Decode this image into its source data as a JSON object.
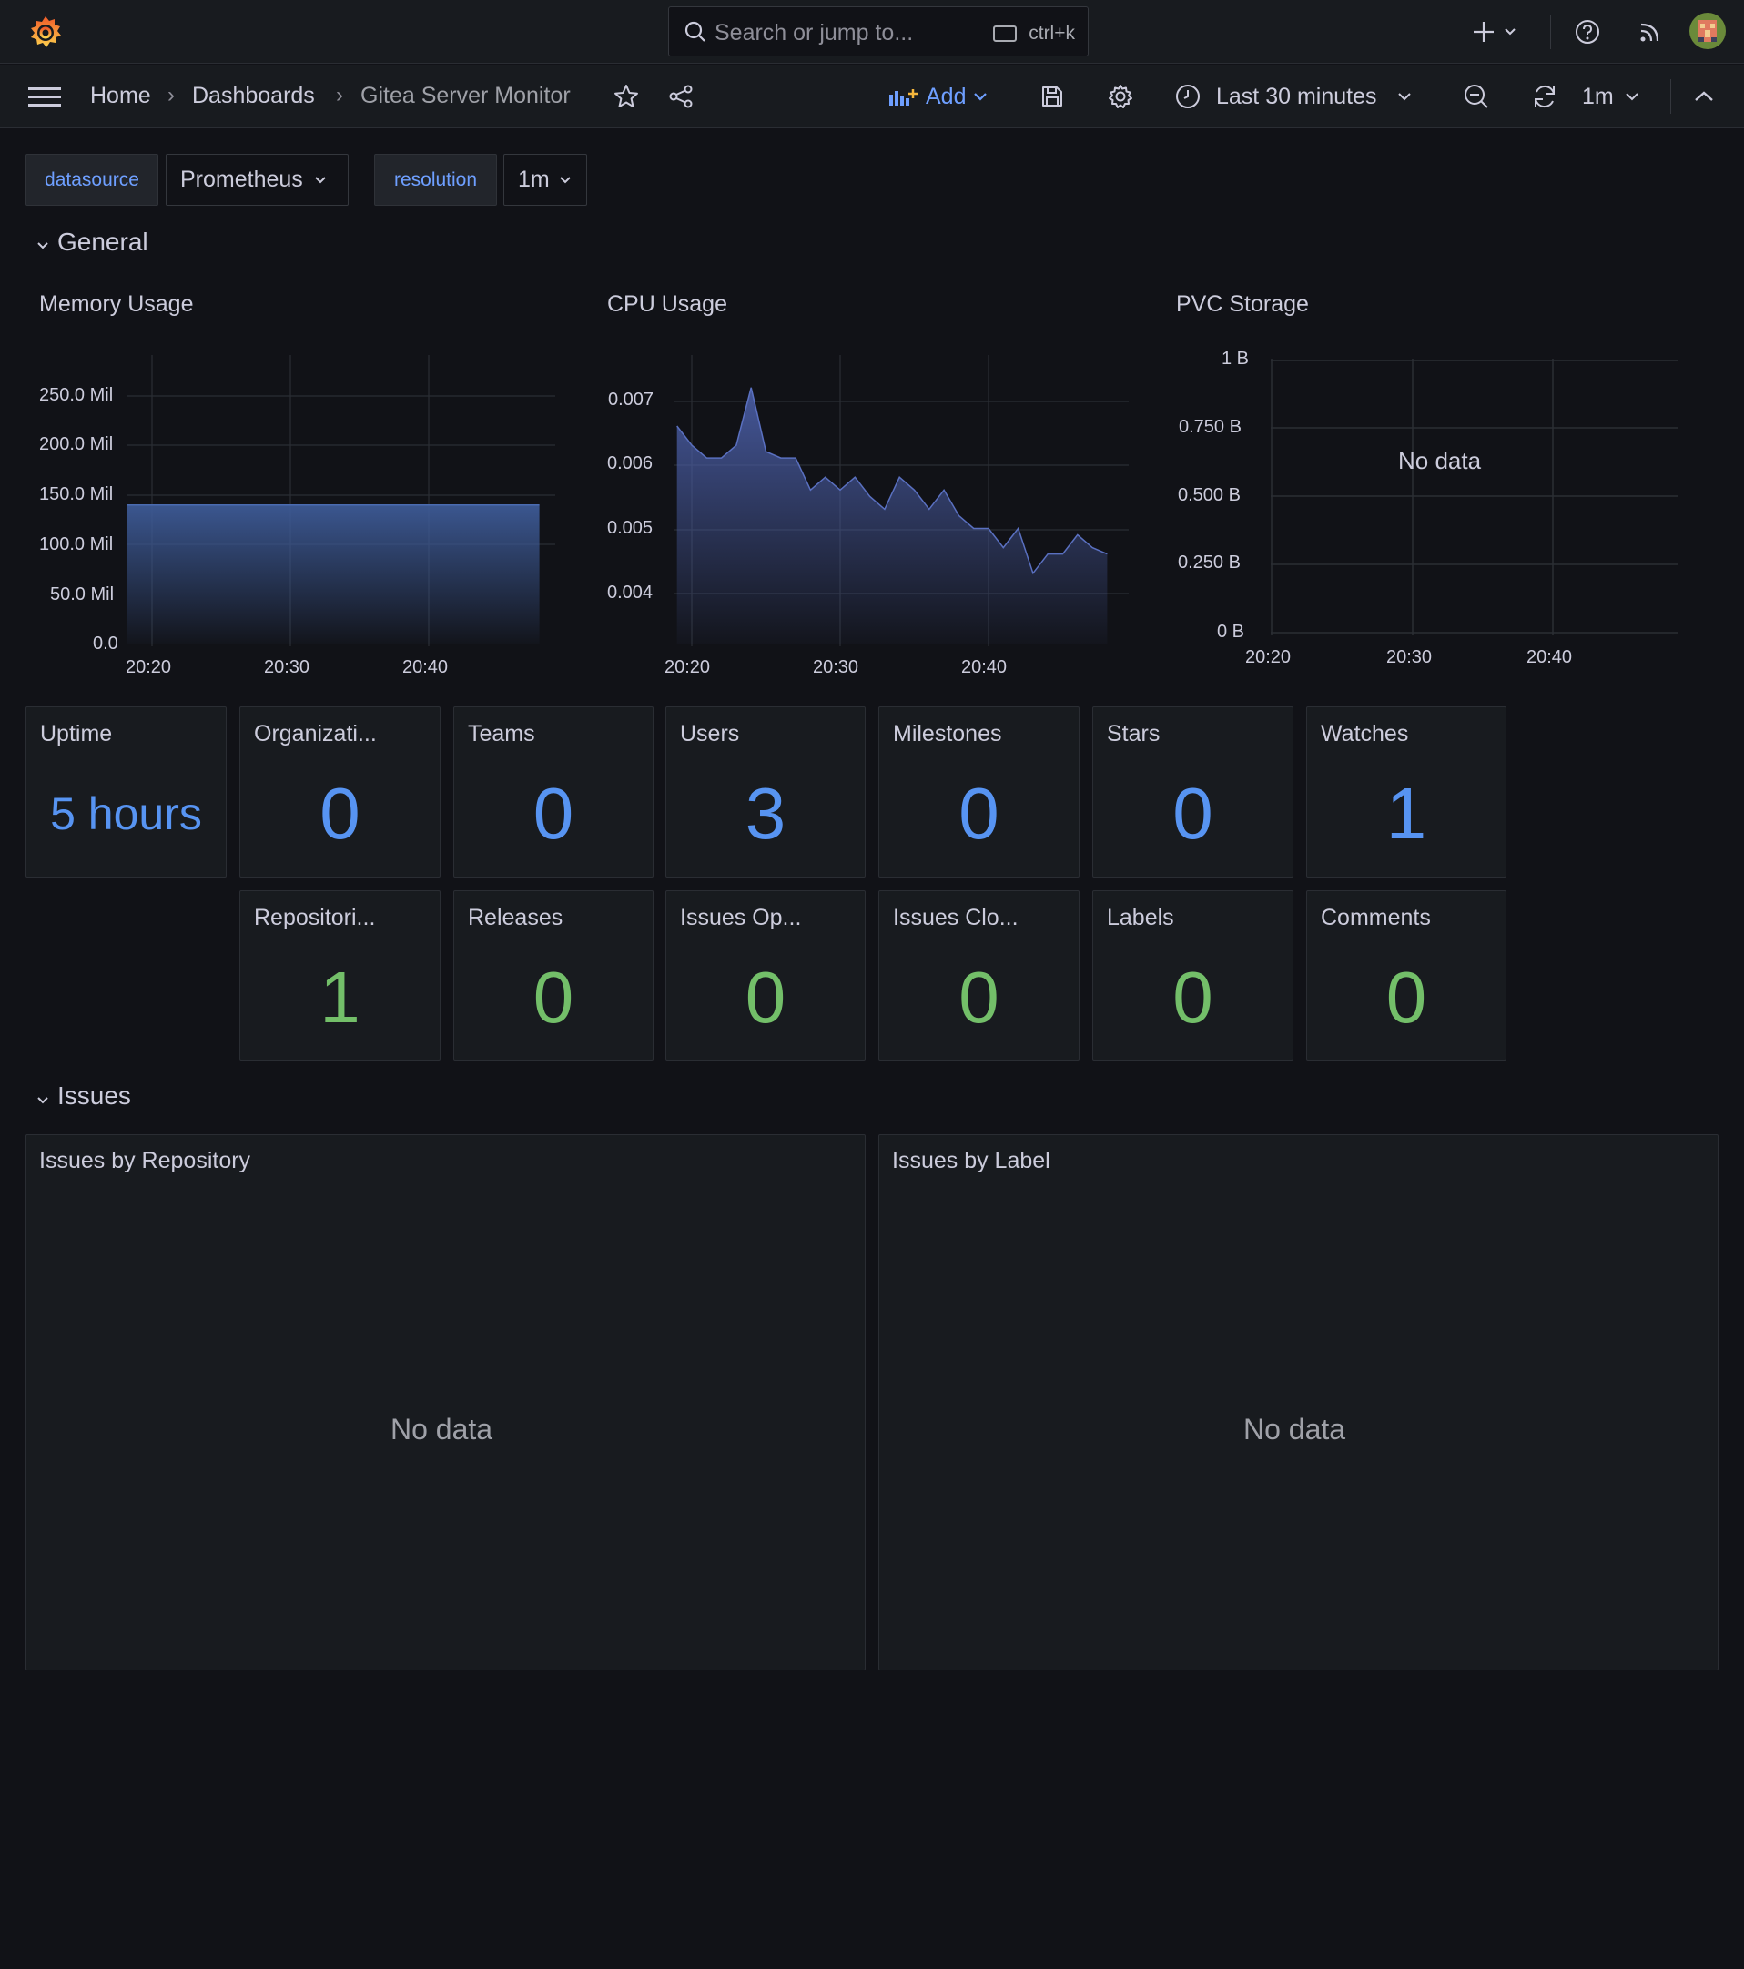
{
  "topbar": {
    "search_placeholder": "Search or jump to...",
    "shortcut": "ctrl+k"
  },
  "breadcrumb": {
    "home": "Home",
    "dashboards": "Dashboards",
    "current": "Gitea Server Monitor"
  },
  "toolbar": {
    "add_label": "Add",
    "time_range": "Last 30 minutes",
    "refresh_interval": "1m"
  },
  "variables": {
    "datasource_label": "datasource",
    "datasource_value": "Prometheus",
    "resolution_label": "resolution",
    "resolution_value": "1m"
  },
  "rows": {
    "general": "General",
    "issues": "Issues"
  },
  "panels": {
    "memory": {
      "title": "Memory Usage",
      "y_ticks": [
        "250.0 Mil",
        "200.0 Mil",
        "150.0 Mil",
        "100.0 Mil",
        "50.0 Mil",
        "0.0"
      ],
      "x_ticks": [
        "20:20",
        "20:30",
        "20:40"
      ]
    },
    "cpu": {
      "title": "CPU Usage",
      "y_ticks": [
        "0.007",
        "0.006",
        "0.005",
        "0.004"
      ],
      "x_ticks": [
        "20:20",
        "20:30",
        "20:40"
      ]
    },
    "pvc": {
      "title": "PVC Storage",
      "y_ticks": [
        "1 B",
        "0.750 B",
        "0.500 B",
        "0.250 B",
        "0 B"
      ],
      "x_ticks": [
        "20:20",
        "20:30",
        "20:40"
      ],
      "no_data": "No data"
    },
    "issues_by_repo": {
      "title": "Issues by Repository",
      "no_data": "No data"
    },
    "issues_by_label": {
      "title": "Issues by Label",
      "no_data": "No data"
    }
  },
  "stats_row1": [
    {
      "title": "Uptime",
      "value": "5 hours"
    },
    {
      "title": "Organizati...",
      "value": "0"
    },
    {
      "title": "Teams",
      "value": "0"
    },
    {
      "title": "Users",
      "value": "3"
    },
    {
      "title": "Milestones",
      "value": "0"
    },
    {
      "title": "Stars",
      "value": "0"
    },
    {
      "title": "Watches",
      "value": "1"
    }
  ],
  "stats_row2": [
    {
      "title": "Repositori...",
      "value": "1"
    },
    {
      "title": "Releases",
      "value": "0"
    },
    {
      "title": "Issues Op...",
      "value": "0"
    },
    {
      "title": "Issues Clo...",
      "value": "0"
    },
    {
      "title": "Labels",
      "value": "0"
    },
    {
      "title": "Comments",
      "value": "0"
    }
  ],
  "chart_data": [
    {
      "type": "area",
      "x": [
        "20:18",
        "20:48"
      ],
      "series": [
        {
          "values": [
            140000000,
            140000000
          ]
        }
      ],
      "ylim": [
        0,
        270000000
      ]
    },
    {
      "type": "area",
      "x": [
        "20:19",
        "20:20",
        "20:21",
        "20:22",
        "20:23",
        "20:24",
        "20:25",
        "20:26",
        "20:27",
        "20:28",
        "20:29",
        "20:30",
        "20:31",
        "20:32",
        "20:33",
        "20:34",
        "20:35",
        "20:36",
        "20:37",
        "20:38",
        "20:39",
        "20:40",
        "20:41",
        "20:42",
        "20:43",
        "20:44",
        "20:45",
        "20:46",
        "20:47",
        "20:48"
      ],
      "series": [
        {
          "values": [
            0.0067,
            0.0064,
            0.0062,
            0.0062,
            0.0064,
            0.0073,
            0.0063,
            0.0062,
            0.0062,
            0.0057,
            0.0059,
            0.0057,
            0.0059,
            0.0056,
            0.0054,
            0.0059,
            0.0057,
            0.0054,
            0.0057,
            0.0053,
            0.0051,
            0.0051,
            0.0048,
            0.0051,
            0.0044,
            0.0047,
            0.0047,
            0.005,
            0.0048,
            0.0047
          ]
        }
      ],
      "ylim": [
        0.0033,
        0.0077
      ]
    },
    {
      "type": "line",
      "x": [],
      "series": [],
      "ylim": [
        0,
        1
      ]
    }
  ],
  "colors": {
    "accent_blue": "#5794f2",
    "stat_green": "#73bf69",
    "background": "#111217",
    "panel": "#181b1f"
  }
}
